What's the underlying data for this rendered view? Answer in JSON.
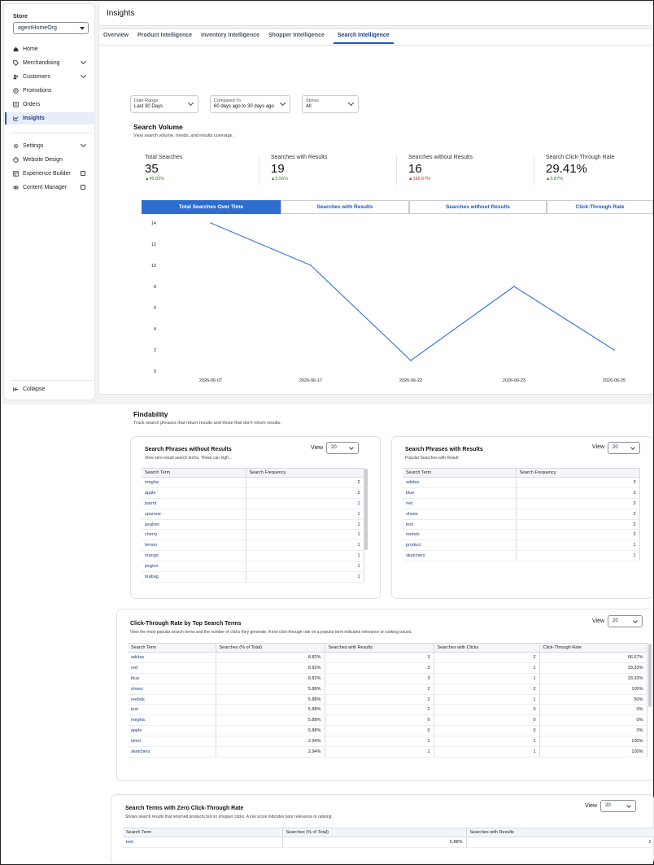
{
  "sidebar": {
    "store_label": "Store",
    "store_value": "agentHomeOrg",
    "items": [
      {
        "label": "Home"
      },
      {
        "label": "Merchandising"
      },
      {
        "label": "Customers"
      },
      {
        "label": "Promotions"
      },
      {
        "label": "Orders"
      },
      {
        "label": "Insights"
      },
      {
        "label": "Settings"
      },
      {
        "label": "Website Design"
      },
      {
        "label": "Experience Builder"
      },
      {
        "label": "Content Manager"
      }
    ],
    "collapse_label": "Collapse"
  },
  "header": {
    "title": "Insights"
  },
  "tabs": [
    "Overview",
    "Product Intelligence",
    "Inventory Intelligence",
    "Shopper Intelligence",
    "Search Intelligence"
  ],
  "filters": [
    {
      "label": "Date Range",
      "value": "Last 30 Days"
    },
    {
      "label": "Compared To",
      "value": "60 days ago to 30 days ago"
    },
    {
      "label": "Stores",
      "value": "All"
    }
  ],
  "search_volume": {
    "title": "Search Volume",
    "subtitle": "View search volume, trends, and results coverage.",
    "metrics": [
      {
        "label": "Total Searches",
        "value": "35",
        "change": "▲45.83%",
        "dir": "up"
      },
      {
        "label": "Searches with Results",
        "value": "19",
        "change": "▲5.56%",
        "dir": "up"
      },
      {
        "label": "Searches without Results",
        "value": "16",
        "change": "▲166.67%",
        "dir": "down"
      },
      {
        "label": "Search Click-Through Rate",
        "value": "29.41%",
        "change": "▲5.87%",
        "dir": "up"
      }
    ],
    "chart_tabs": [
      "Total Searches Over Time",
      "Searches with Results",
      "Searches without Results",
      "Click-Through Rate"
    ]
  },
  "chart_data": {
    "type": "line",
    "x": [
      "2026-06-07",
      "2026-06-17",
      "2026-06-22",
      "2026-06-23",
      "2026-06-25"
    ],
    "series": [
      {
        "values": [
          14,
          10,
          1,
          8,
          2
        ]
      }
    ],
    "yticks": [
      0,
      2,
      4,
      6,
      8,
      10,
      12,
      14
    ],
    "ylim": [
      0,
      14
    ],
    "line_color": "#3b78d8"
  },
  "findability": {
    "title": "Findability",
    "subtitle": "Track search phrases that return results and those that don't return results.",
    "view_label": "View",
    "without": {
      "title": "Search Phrases without Results",
      "subtitle": "View zero-result search terms. These can high...",
      "view_value": "20",
      "headers": [
        "Search Term",
        "Search Frequency"
      ],
      "rows": [
        [
          "megha",
          "2"
        ],
        [
          "apple",
          "2"
        ],
        [
          "parrot",
          "1"
        ],
        [
          "sparrow",
          "1"
        ],
        [
          "peahen",
          "1"
        ],
        [
          "cherry",
          "1"
        ],
        [
          "lemon",
          "1"
        ],
        [
          "mango",
          "1"
        ],
        [
          "pegion",
          "1"
        ],
        [
          "teabag",
          "1"
        ]
      ]
    },
    "with": {
      "title": "Search Phrases with Results",
      "subtitle": "Popular Searches with Result",
      "view_value": "20",
      "headers": [
        "Search Term",
        "Search Frequency"
      ],
      "rows": [
        [
          "adidas",
          "3"
        ],
        [
          "blue",
          "3"
        ],
        [
          "red",
          "3"
        ],
        [
          "shoes",
          "2"
        ],
        [
          "test",
          "2"
        ],
        [
          "reebok",
          "2"
        ],
        [
          "product",
          "1"
        ],
        [
          "sketchers",
          "1"
        ]
      ]
    }
  },
  "ctr": {
    "title": "Click-Through Rate by Top Search Terms",
    "subtitle": "View the most popular search terms and the number of clicks they generate. A low click-through rate on a popular term indicates relevance or ranking issues.",
    "view_label": "View",
    "view_value": "20",
    "headers": [
      "Search Term",
      "Searches (% of Total)",
      "Searches with Results",
      "Searches with Clicks",
      "Click-Through Rate"
    ],
    "rows": [
      [
        "adidas",
        "8.82%",
        "3",
        "2",
        "66.67%"
      ],
      [
        "red",
        "8.82%",
        "3",
        "1",
        "33.33%"
      ],
      [
        "blue",
        "8.82%",
        "3",
        "1",
        "33.33%"
      ],
      [
        "shoes",
        "5.88%",
        "2",
        "2",
        "100%"
      ],
      [
        "reebok",
        "5.88%",
        "2",
        "1",
        "50%"
      ],
      [
        "test",
        "5.88%",
        "2",
        "0",
        "0%"
      ],
      [
        "megha",
        "5.88%",
        "0",
        "0",
        "0%"
      ],
      [
        "apple",
        "5.88%",
        "0",
        "0",
        "0%"
      ],
      [
        "tshirt",
        "2.94%",
        "1",
        "1",
        "100%"
      ],
      [
        "sketchers",
        "2.94%",
        "1",
        "1",
        "100%"
      ]
    ]
  },
  "zero_ctr": {
    "title": "Search Terms with Zero Click-Through Rate",
    "subtitle": "Shows search results that returned products but no shopper clicks. A low score indicates poor relevance or ranking.",
    "view_label": "View",
    "view_value": "20",
    "headers": [
      "Search Term",
      "Searches (% of Total)",
      "Searches with Results"
    ],
    "rows": [
      [
        "test",
        "5.88%",
        "2"
      ]
    ]
  }
}
